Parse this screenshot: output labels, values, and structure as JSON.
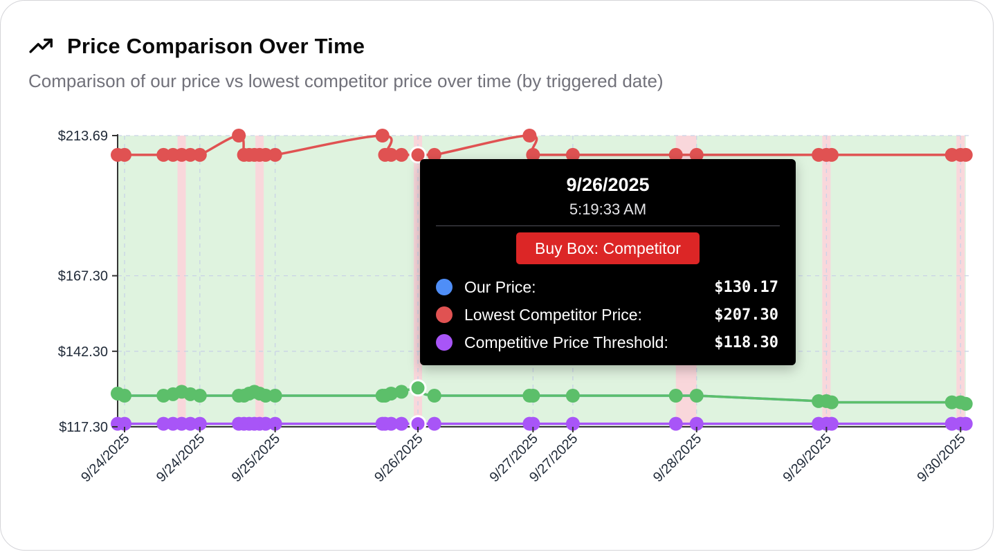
{
  "header": {
    "icon": "trending-up-icon",
    "title": "Price Comparison Over Time",
    "subtitle": "Comparison of our price vs lowest competitor price over time (by triggered date)"
  },
  "colors": {
    "our_price": "#4f8ef7",
    "competitor": "#e05252",
    "threshold": "#a855f7",
    "winning": "#5cbf6a",
    "buybox_ours_band": "#dff3df",
    "buybox_competitor_band": "#f9d7db",
    "axis": "#333333",
    "grid": "#c9d3e6"
  },
  "tooltip": {
    "date": "9/26/2025",
    "time": "5:19:33 AM",
    "badge": "Buy Box: Competitor",
    "rows": [
      {
        "label": "Our Price:",
        "value": "$130.17",
        "color": "#4f8ef7"
      },
      {
        "label": "Lowest Competitor Price:",
        "value": "$207.30",
        "color": "#e05252"
      },
      {
        "label": "Competitive Price Threshold:",
        "value": "$118.30",
        "color": "#a855f7"
      }
    ]
  },
  "chart_data": {
    "type": "line",
    "title": "Price Comparison Over Time",
    "xlabel": "",
    "ylabel": "",
    "ylim": [
      117.3,
      213.69
    ],
    "y_ticks": [
      "$117.30",
      "$142.30",
      "$167.30",
      "$213.69"
    ],
    "y_tick_values": [
      117.3,
      142.3,
      167.3,
      213.69
    ],
    "x_ticks": [
      {
        "label": "9/24/2025",
        "at": 0.8
      },
      {
        "label": "9/24/2025",
        "at": 9.5
      },
      {
        "label": "9/25/2025",
        "at": 18.2
      },
      {
        "label": "9/26/2025",
        "at": 34.7
      },
      {
        "label": "9/27/2025",
        "at": 48.0
      },
      {
        "label": "9/27/2025",
        "at": 52.6
      },
      {
        "label": "9/28/2025",
        "at": 66.9
      },
      {
        "label": "9/29/2025",
        "at": 81.9
      },
      {
        "label": "9/30/2025",
        "at": 97.4
      }
    ],
    "x_domain": [
      0,
      98.5
    ],
    "grid": true,
    "x": [
      0,
      0.8,
      5.3,
      6.4,
      7.4,
      8.4,
      9.5,
      14.0,
      14.6,
      15.2,
      15.8,
      16.4,
      17.1,
      18.2,
      30.6,
      30.9,
      31.6,
      32.8,
      34.7,
      36.6,
      47.6,
      48.0,
      52.6,
      64.5,
      66.9,
      81.0,
      81.9,
      82.5,
      96.4,
      97.4,
      98.0
    ],
    "series": [
      {
        "name": "Our Price",
        "values": [
          128.3,
          127.6,
          127.6,
          128.1,
          128.9,
          128.1,
          127.6,
          127.6,
          127.6,
          128.3,
          128.9,
          128.3,
          127.6,
          127.6,
          127.6,
          127.6,
          128.3,
          128.9,
          130.17,
          127.6,
          127.6,
          127.6,
          127.6,
          127.6,
          127.6,
          125.8,
          125.8,
          125.4,
          125.4,
          125.4,
          124.9
        ]
      },
      {
        "name": "Lowest Competitor Price",
        "values": [
          207.3,
          207.3,
          207.3,
          207.3,
          207.3,
          207.3,
          207.3,
          213.69,
          207.3,
          207.3,
          207.3,
          207.3,
          207.3,
          207.3,
          213.69,
          207.3,
          207.3,
          207.3,
          207.3,
          207.3,
          213.69,
          207.3,
          207.3,
          207.3,
          207.3,
          207.3,
          207.3,
          207.3,
          207.3,
          207.3,
          207.3
        ]
      },
      {
        "name": "Competitive Price Threshold",
        "values": [
          118.3,
          118.3,
          118.3,
          118.3,
          118.3,
          118.3,
          118.3,
          118.3,
          118.3,
          118.3,
          118.3,
          118.3,
          118.3,
          118.3,
          118.3,
          118.3,
          118.3,
          118.3,
          118.3,
          118.3,
          118.3,
          118.3,
          118.3,
          118.3,
          118.3,
          118.3,
          118.3,
          118.3,
          118.3,
          118.3,
          118.3
        ]
      }
    ],
    "buybox_competitor_x": [
      7.4,
      16.4,
      34.7,
      64.5,
      81.9,
      97.4
    ],
    "winning_series_color": "#5cbf6a",
    "highlight_index": 18
  }
}
